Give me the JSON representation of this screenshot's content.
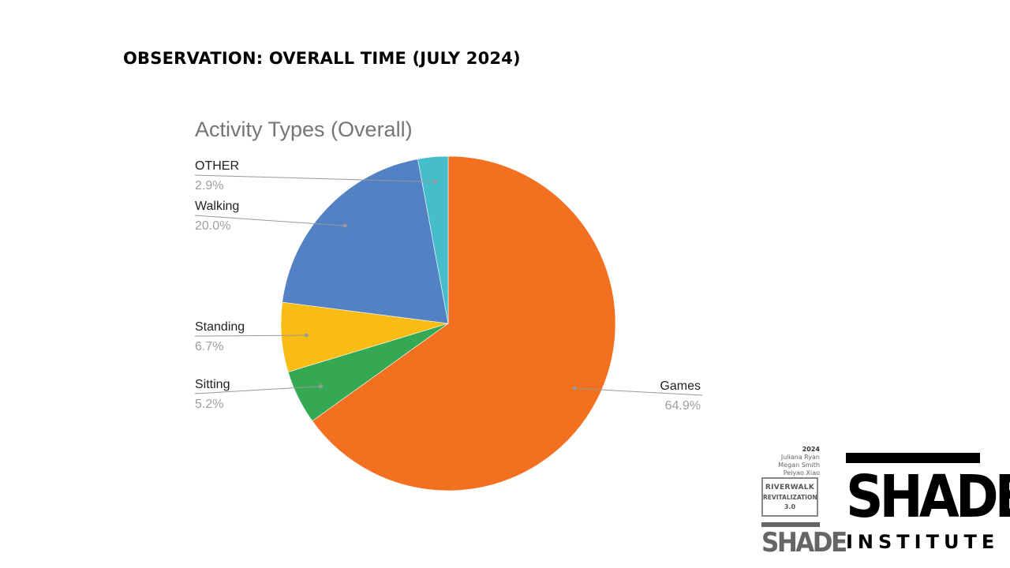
{
  "slide": {
    "title_lead": "OBSERVATION:",
    "title_rest": "OVERALL TIME (JULY 2024)"
  },
  "chart_data": {
    "type": "pie",
    "title": "Activity Types (Overall)",
    "start_angle_deg": 0,
    "direction": "clockwise",
    "slices": [
      {
        "name": "Games",
        "value": 64.9,
        "label": "64.9%",
        "color": "#f37021"
      },
      {
        "name": "Sitting",
        "value": 5.2,
        "label": "5.2%",
        "color": "#34a853"
      },
      {
        "name": "Standing",
        "value": 6.7,
        "label": "6.7%",
        "color": "#f9bc15"
      },
      {
        "name": "Walking",
        "value": 20.0,
        "label": "20.0%",
        "color": "#5282c3"
      },
      {
        "name": "OTHER",
        "value": 2.9,
        "label": "2.9%",
        "color": "#45bdca"
      }
    ],
    "legend": "none"
  },
  "branding": {
    "year": "2024",
    "names": [
      "Juliana Ryan",
      "Megan Smith",
      "Peiyao Xiao"
    ],
    "project_line1": "RIVERWALK",
    "project_line2": "REVITALIZATION",
    "project_line3": "3.0",
    "small_logo": "SHADE",
    "big_logo": "SHADE",
    "big_logo_sub": "INSTITUTE"
  }
}
